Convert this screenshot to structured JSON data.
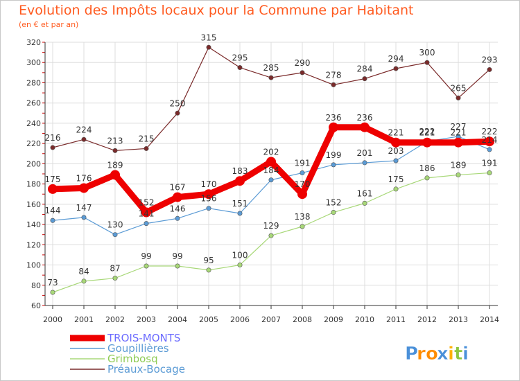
{
  "title": "Evolution des Impôts locaux pour la Commune par Habitant",
  "subtitle": "(en € et par an)",
  "brand": {
    "letters": [
      "P",
      "r",
      "o",
      "x",
      "i",
      "t",
      "i"
    ],
    "colors": [
      "#4a90d9",
      "#ff8c00",
      "#ff8c00",
      "#4a90d9",
      "#ffb000",
      "#8dc63f",
      "#4a90d9"
    ]
  },
  "chart_data": {
    "type": "line",
    "x": [
      2000,
      2001,
      2002,
      2003,
      2004,
      2005,
      2006,
      2007,
      2008,
      2009,
      2010,
      2011,
      2012,
      2013,
      2014
    ],
    "ylim": [
      60,
      320
    ],
    "yticks": [
      60,
      80,
      100,
      120,
      140,
      160,
      180,
      200,
      220,
      240,
      260,
      280,
      300,
      320
    ],
    "grid": true,
    "legend_position": "bottom-left",
    "series": [
      {
        "name": "TROIS-MONTS",
        "color": "#ee0000",
        "legend_text_color": "#6b6bff",
        "values": [
          175,
          176,
          189,
          152,
          167,
          170,
          183,
          202,
          170,
          236,
          236,
          221,
          221,
          221,
          222
        ],
        "labels": [
          "175",
          "176",
          "189",
          "152",
          "167",
          "170",
          "183",
          "202",
          "170",
          "236",
          "236",
          "221",
          "221",
          "221",
          "222"
        ]
      },
      {
        "name": "Goupillières",
        "color": "#5b9bd5",
        "legend_text_color": "#5b9bd5",
        "values": [
          144,
          147,
          130,
          141,
          146,
          156,
          151,
          184,
          191,
          199,
          201,
          203,
          222,
          227,
          214
        ],
        "labels": [
          "144",
          "147",
          "130",
          "141",
          "146",
          "156",
          "151",
          "184",
          "191",
          "199",
          "201",
          "203",
          "222",
          "227",
          "214"
        ]
      },
      {
        "name": "Grimbosq",
        "color": "#a8d878",
        "legend_text_color": "#8fcc55",
        "values": [
          73,
          84,
          87,
          99,
          99,
          95,
          100,
          129,
          138,
          152,
          161,
          175,
          186,
          189,
          191
        ],
        "labels": [
          "73",
          "84",
          "87",
          "99",
          "99",
          "95",
          "100",
          "129",
          "138",
          "152",
          "161",
          "175",
          "186",
          "189",
          "191"
        ]
      },
      {
        "name": "Préaux-Bocage",
        "color": "#7a2a2a",
        "legend_text_color": "#5b9bd5",
        "values": [
          216,
          224,
          213,
          215,
          250,
          315,
          295,
          285,
          290,
          278,
          284,
          294,
          300,
          265,
          293
        ],
        "labels": [
          "216",
          "224",
          "213",
          "215",
          "250",
          "315",
          "295",
          "285",
          "290",
          "278",
          "284",
          "294",
          "300",
          "265",
          "293"
        ]
      }
    ]
  }
}
